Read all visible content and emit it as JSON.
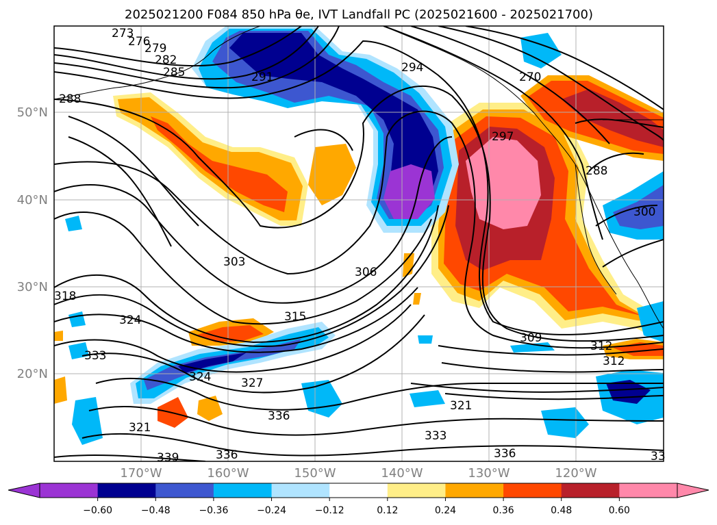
{
  "title": "2025021200 F084 850 hPa θe, IVT Landfall PC (2025021600 - 2025021700)",
  "map": {
    "lon_ticks": [
      "170°W",
      "160°W",
      "150°W",
      "140°W",
      "130°W",
      "120°W"
    ],
    "lat_ticks": [
      "50°N",
      "40°N",
      "30°N",
      "20°N"
    ]
  },
  "contour_labels": [
    "273",
    "276",
    "279",
    "282",
    "285",
    "288",
    "291",
    "294",
    "270",
    "297",
    "288",
    "300",
    "303",
    "306",
    "318",
    "324",
    "315",
    "333",
    "324",
    "327",
    "309",
    "312",
    "312",
    "321",
    "336",
    "321",
    "333",
    "336",
    "336",
    "339",
    "33"
  ],
  "colorbar": {
    "colors": [
      "#9b34d4",
      "#000090",
      "#3d57d0",
      "#00b8f8",
      "#b0e4ff",
      "#ffffff",
      "#ffee88",
      "#ffa800",
      "#ff4800",
      "#b8202a",
      "#ff88aa"
    ],
    "tick_labels": [
      "−0.60",
      "−0.48",
      "−0.36",
      "−0.24",
      "−0.12",
      "0.12",
      "0.24",
      "0.36",
      "0.48",
      "0.60"
    ]
  }
}
